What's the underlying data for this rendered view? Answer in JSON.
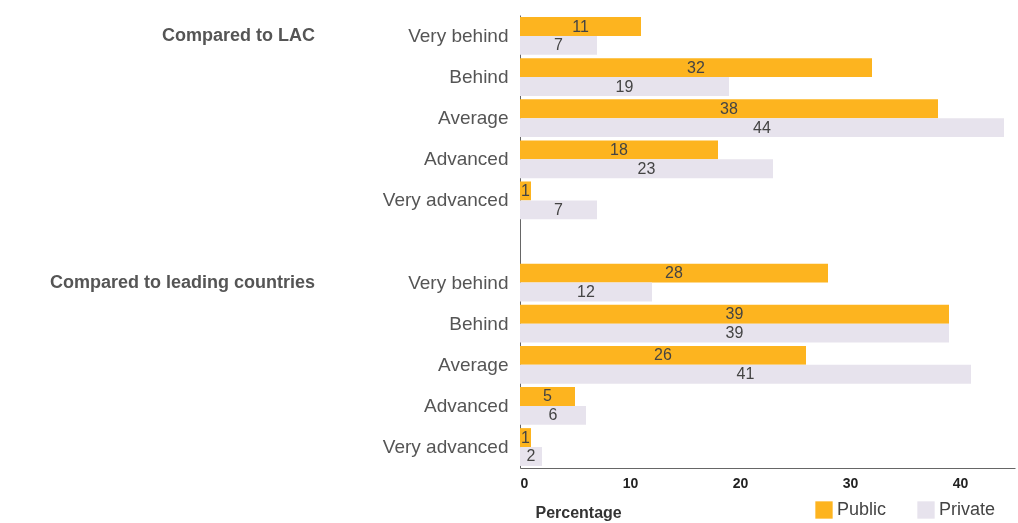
{
  "chart_data": {
    "type": "bar",
    "orientation": "horizontal",
    "categories": [
      "Very behind",
      "Behind",
      "Average",
      "Advanced",
      "Very advanced",
      "Very behind",
      "Behind",
      "Average",
      "Advanced",
      "Very advanced"
    ],
    "series": [
      {
        "name": "Public",
        "color": "#fdb41f",
        "values": [
          11,
          32,
          38,
          18,
          1,
          28,
          39,
          26,
          5,
          1
        ]
      },
      {
        "name": "Private",
        "color": "#e7e3ed",
        "values": [
          7,
          19,
          44,
          23,
          7,
          12,
          39,
          41,
          6,
          2
        ]
      }
    ],
    "xlabel": "Percentage",
    "xlim": [
      0,
      45
    ],
    "xticks": [
      0,
      10,
      20,
      30,
      40
    ],
    "annotations": [
      "Compared to LAC",
      "Compared to leading countries"
    ],
    "data_labels": true,
    "legend": "bottom right",
    "grid": false
  }
}
